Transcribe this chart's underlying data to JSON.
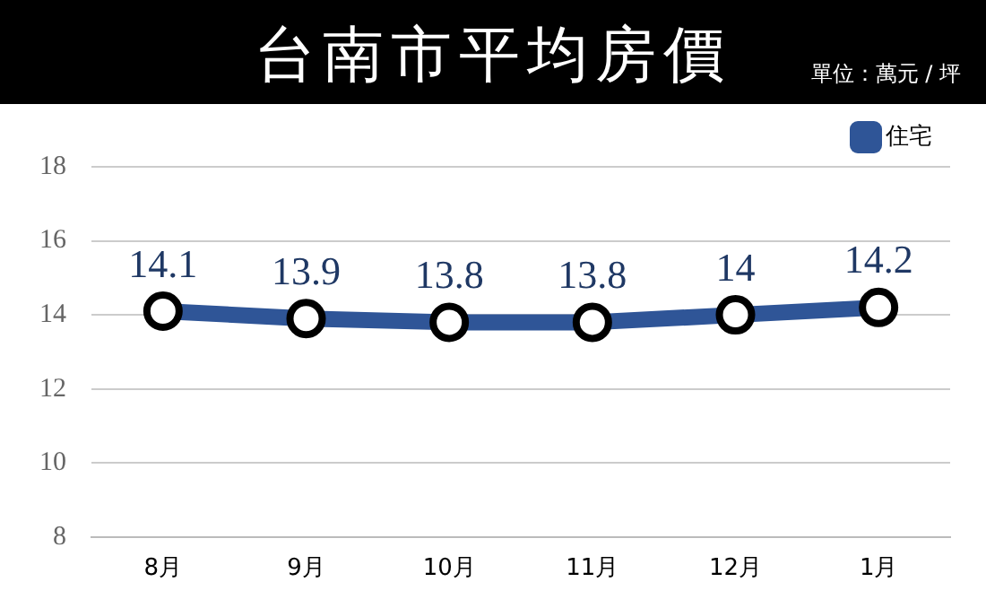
{
  "chart_data": {
    "type": "line",
    "title": "台南市平均房價",
    "annotations": [
      "單位：萬元 / 坪"
    ],
    "categories": [
      "8月",
      "9月",
      "10月",
      "11月",
      "12月",
      "1月"
    ],
    "series": [
      {
        "name": "住宅",
        "color": "#2f5597",
        "values": [
          14.1,
          13.9,
          13.8,
          13.8,
          14,
          14.2
        ]
      }
    ],
    "ylim": [
      8,
      18
    ],
    "yticks": [
      8,
      10,
      12,
      14,
      16,
      18
    ],
    "grid": "y",
    "legend": "top right",
    "marker": "circle",
    "line_style": "solid",
    "data_labels": true
  }
}
